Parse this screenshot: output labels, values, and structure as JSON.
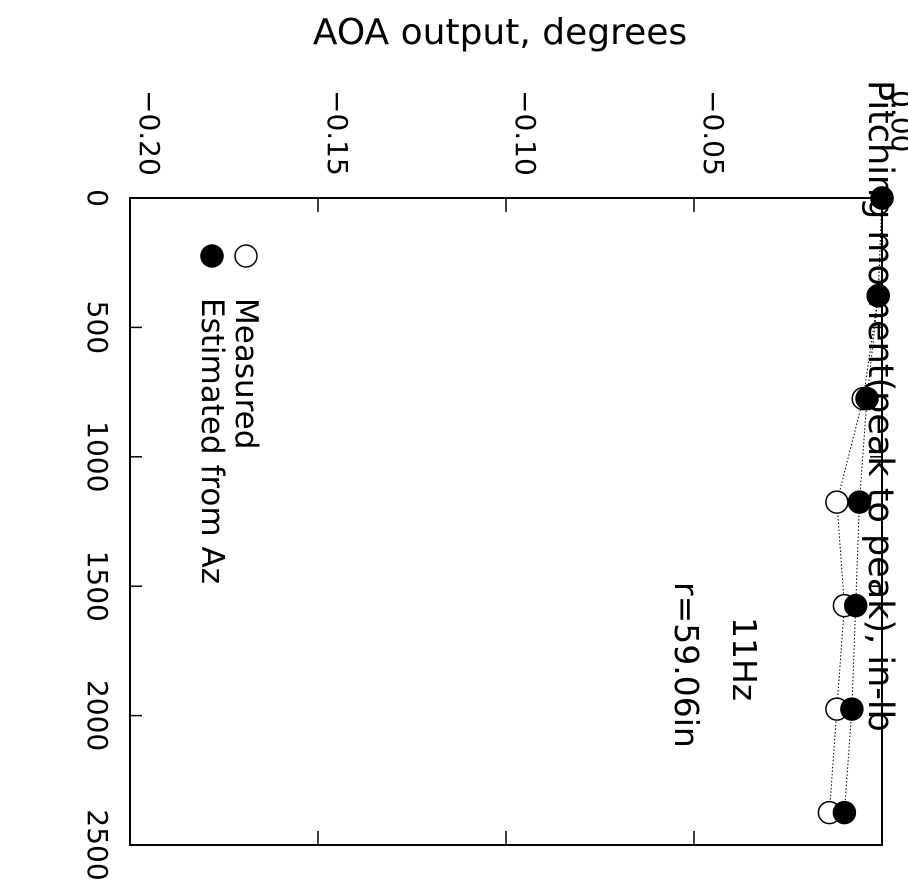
{
  "chart_data": {
    "type": "scatter",
    "title": "AOA output, degrees",
    "xlabel": "Pitching moment(peak to peak), in-lb",
    "ylabel": "",
    "xlim": [
      0,
      2500
    ],
    "ylim": [
      -0.2,
      0.0
    ],
    "x_ticks": [
      "0",
      "500",
      "1000",
      "1500",
      "2000",
      "2500"
    ],
    "y_ticks": [
      "-0.20",
      "-0.15",
      "-0.10",
      "-0.05",
      "0.00"
    ],
    "orientation": "rotated 90 degrees clockwise (AOA axis along top, moment axis running downward)",
    "series": [
      {
        "name": "Measured",
        "marker": "open-circle",
        "line": "dotted",
        "x": [
          0,
          378,
          775,
          1175,
          1575,
          1975,
          2375
        ],
        "y": [
          0.0,
          -0.001,
          -0.005,
          -0.012,
          -0.01,
          -0.012,
          -0.014
        ]
      },
      {
        "name": "Estimated from Az",
        "marker": "filled-circle",
        "line": "dotted",
        "x": [
          0,
          378,
          775,
          1175,
          1575,
          1975,
          2375
        ],
        "y": [
          0.0,
          -0.001,
          -0.004,
          -0.006,
          -0.007,
          -0.008,
          -0.01
        ]
      }
    ],
    "annotations": [
      "11Hz",
      "r=59.06in"
    ],
    "legend_position": "upper-left (in rotated view)",
    "grid": false
  }
}
